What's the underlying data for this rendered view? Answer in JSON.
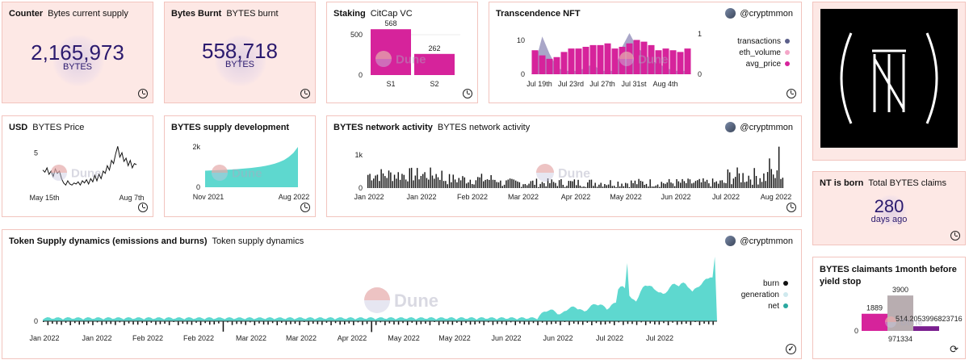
{
  "colors": {
    "magenta": "#d6239b",
    "teal": "#5ed8cf",
    "purple_gray": "#9a97be",
    "card_border": "#f2c4be",
    "card_pink": "#fde8e5",
    "counter_text": "#2b1a6e"
  },
  "counter1": {
    "title_bold": "Counter",
    "title": "Bytes current supply",
    "value": "2,165,973",
    "unit": "BYTES"
  },
  "counter2": {
    "title_bold": "Bytes Burnt",
    "title": "BYTES burnt",
    "value": "558,718",
    "unit": "BYTES"
  },
  "staking": {
    "title_bold": "Staking",
    "title": "CitCap VC",
    "chart_data": {
      "type": "bar",
      "categories": [
        "S1",
        "S2"
      ],
      "values": [
        568,
        262
      ],
      "value_labels": [
        "568",
        "262"
      ],
      "yticks": [
        "500",
        "0"
      ],
      "ylim": [
        0,
        600
      ]
    }
  },
  "nft": {
    "title_bold": "Transcendence NFT",
    "author": "@cryptmmon",
    "legend": [
      {
        "label": "transactions",
        "color": "#5b5f8a"
      },
      {
        "label": "eth_volume",
        "color": "#f4a6c8"
      },
      {
        "label": "avg_price",
        "color": "#d6239b"
      }
    ],
    "chart_data": {
      "type": "bar",
      "x_ticks": [
        "Jul 19th",
        "Jul 23rd",
        "Jul 27th",
        "Jul 31st",
        "Aug 4th"
      ],
      "y_left_ticks": [
        "10",
        "0"
      ],
      "y_right_ticks": [
        "1",
        "0"
      ],
      "series": [
        {
          "name": "avg_price",
          "values": [
            7,
            5.5,
            4.5,
            5,
            6.5,
            7.5,
            7.5,
            8,
            8.5,
            8.5,
            9,
            7.5,
            8,
            9,
            10,
            9.5,
            8.5,
            7,
            7.5,
            7,
            6.5,
            7.5
          ]
        },
        {
          "name": "transactions",
          "values": [
            3,
            11,
            6,
            2,
            1,
            1,
            1,
            2,
            3,
            1,
            1,
            1,
            8,
            12,
            8,
            6,
            4,
            3,
            2,
            1,
            1,
            1
          ]
        }
      ]
    }
  },
  "usd": {
    "title_bold": "USD",
    "title": "BYTES Price",
    "chart_data": {
      "type": "line",
      "x_ticks": [
        "May 15th",
        "Aug 7th"
      ],
      "y_ticks": [
        "5"
      ],
      "values": [
        3.4,
        3.2,
        3.6,
        3.0,
        3.3,
        2.8,
        3.5,
        3.1,
        3.3,
        2.6,
        2.2,
        2.0,
        2.4,
        2.1,
        2.0,
        2.2,
        2.1,
        2.3,
        2.0,
        2.4,
        2.2,
        2.5,
        2.1,
        2.6,
        2.3,
        2.9,
        2.4,
        3.0,
        2.6,
        3.3,
        3.1,
        3.8,
        3.4,
        4.3,
        4.0,
        4.9,
        5.6,
        4.6,
        5.0,
        4.2,
        4.5,
        3.8,
        4.3,
        3.6,
        4.0,
        3.9
      ]
    }
  },
  "supply": {
    "title_bold": "BYTES supply development",
    "chart_data": {
      "type": "area",
      "x_ticks": [
        "Nov 2021",
        "Aug 2022"
      ],
      "y_ticks": [
        "2k",
        "0"
      ],
      "ylim": [
        0,
        2000
      ],
      "values": [
        820,
        830,
        840,
        850,
        860,
        870,
        880,
        900,
        920,
        940,
        960,
        990,
        1020,
        1060,
        1110,
        1170,
        1250,
        1350,
        1500,
        1700,
        2000
      ]
    }
  },
  "network": {
    "title_bold": "BYTES network activity",
    "title": "BYTES network activity",
    "author": "@cryptmmon",
    "chart_data": {
      "type": "bar",
      "x_ticks": [
        "Jan 2022",
        "Jan 2022",
        "Feb 2022",
        "Mar 2022",
        "Apr 2022",
        "May 2022",
        "Jun 2022",
        "Jul 2022",
        "Aug 2022"
      ],
      "y_ticks": [
        "1k",
        "0"
      ],
      "ylim": [
        0,
        1500
      ]
    }
  },
  "logo": {
    "left_paren": "(",
    "right_paren": ")",
    "glyph": "NT"
  },
  "born": {
    "title_bold": "NT is born",
    "title": "Total BYTES claims",
    "value": "280",
    "unit": "days ago"
  },
  "claimants": {
    "title": "BYTES claimants 1month before yield stop",
    "chart_data": {
      "type": "bar",
      "categories": [
        "971334"
      ],
      "series": [
        {
          "name": "s1",
          "value": 1889,
          "label": "1889",
          "color": "#d6239b"
        },
        {
          "name": "s2",
          "value": 3900,
          "label": "3900",
          "color": "#b8adb0"
        },
        {
          "name": "s3",
          "value": 514.2053996823716,
          "label": "514.2053996823716",
          "color": "#7a1f8f"
        }
      ],
      "y_ticks": [
        "0"
      ]
    }
  },
  "dynamics": {
    "title_bold": "Token Supply dynamics (emissions and burns)",
    "title": "Token supply dynamics",
    "author": "@cryptmmon",
    "legend": [
      {
        "label": "burn",
        "color": "#111111"
      },
      {
        "label": "generation",
        "color": "#cfe9ee"
      },
      {
        "label": "net",
        "color": "#2aa8a0"
      }
    ],
    "chart_data": {
      "type": "area",
      "x_ticks": [
        "Jan 2022",
        "Jan 2022",
        "Feb 2022",
        "Feb 2022",
        "Mar 2022",
        "Mar 2022",
        "Apr 2022",
        "May 2022",
        "May 2022",
        "Jun 2022",
        "Jun 2022",
        "Jul 2022",
        "Jul 2022"
      ],
      "y_ticks": [
        "0"
      ]
    }
  },
  "watermark": "Dune"
}
